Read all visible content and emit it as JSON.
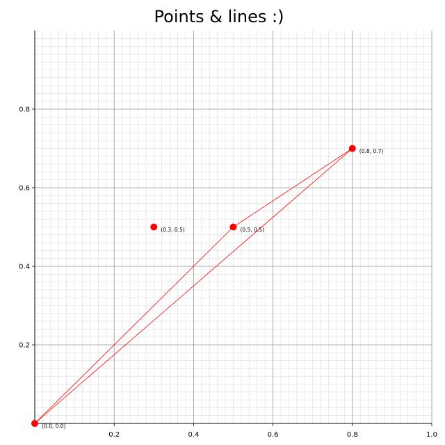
{
  "chart_data": {
    "type": "scatter",
    "title": "Points & lines :)",
    "xlabel": "",
    "ylabel": "",
    "xlim": [
      0.0,
      1.0
    ],
    "ylim": [
      0.0,
      1.0
    ],
    "x_ticks": [
      0.2,
      0.4,
      0.6,
      0.8,
      1.0
    ],
    "x_tick_labels": [
      "0.2",
      "0.4",
      "0.6",
      "0.8",
      "1.0"
    ],
    "y_ticks": [
      0.2,
      0.4,
      0.6,
      0.8
    ],
    "y_tick_labels": [
      "0.2",
      "0.4",
      "0.6",
      "0.8"
    ],
    "grid": true,
    "minor_grid_step": 0.02,
    "points": [
      {
        "x": 0.0,
        "y": 0.0,
        "label": "(0.0, 0.0)"
      },
      {
        "x": 0.3,
        "y": 0.5,
        "label": "(0.3, 0.5)"
      },
      {
        "x": 0.5,
        "y": 0.5,
        "label": "(0.5, 0.5)"
      },
      {
        "x": 0.8,
        "y": 0.7,
        "label": "(0.8, 0.7)"
      }
    ],
    "lines": [
      {
        "from": [
          0.0,
          0.0
        ],
        "to": [
          0.5,
          0.5
        ]
      },
      {
        "from": [
          0.5,
          0.5
        ],
        "to": [
          0.8,
          0.7
        ]
      },
      {
        "from": [
          0.8,
          0.7
        ],
        "to": [
          0.0,
          0.0
        ]
      }
    ],
    "colors": {
      "point": "#ff0000",
      "line": "#ff0000",
      "major_grid": "#9a9a9a",
      "minor_grid": "#dddddd",
      "axis": "#000000"
    }
  }
}
